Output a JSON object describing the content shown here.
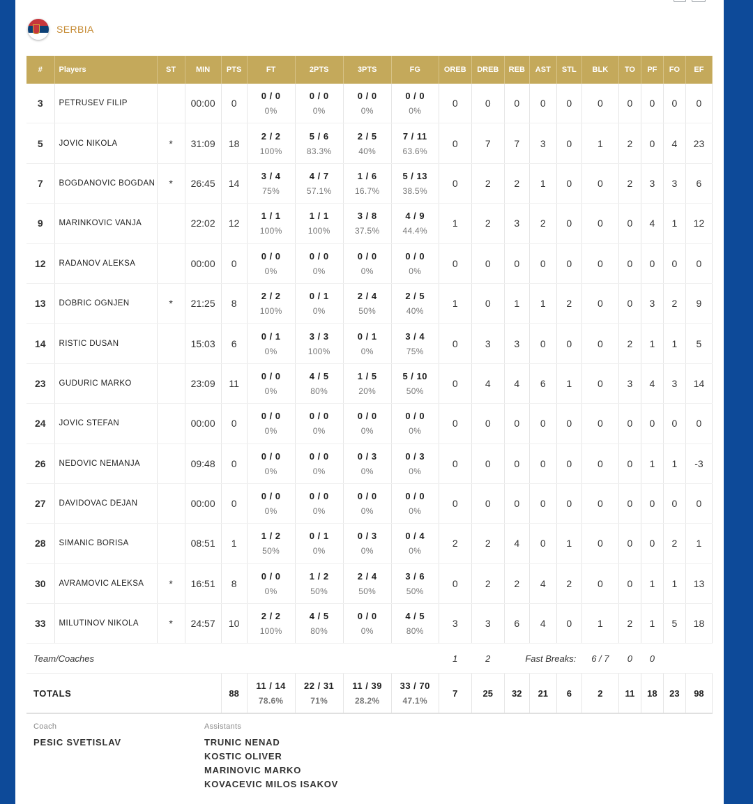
{
  "team": {
    "name": "SERBIA"
  },
  "columns": [
    "#",
    "Players",
    "ST",
    "MIN",
    "PTS",
    "FT",
    "2PTS",
    "3PTS",
    "FG",
    "OREB",
    "DREB",
    "REB",
    "AST",
    "STL",
    "BLK",
    "TO",
    "PF",
    "FO",
    "EF"
  ],
  "players": [
    {
      "num": "3",
      "name": "PETRUSEV FILIP",
      "st": "",
      "min": "00:00",
      "pts": "0",
      "ft": "0 / 0",
      "ft_pct": "0%",
      "p2": "0 / 0",
      "p2_pct": "0%",
      "p3": "0 / 0",
      "p3_pct": "0%",
      "fg": "0 / 0",
      "fg_pct": "0%",
      "oreb": "0",
      "dreb": "0",
      "reb": "0",
      "ast": "0",
      "stl": "0",
      "blk": "0",
      "to": "0",
      "pf": "0",
      "fo": "0",
      "ef": "0"
    },
    {
      "num": "5",
      "name": "JOVIC NIKOLA",
      "st": "*",
      "min": "31:09",
      "pts": "18",
      "ft": "2 / 2",
      "ft_pct": "100%",
      "p2": "5 / 6",
      "p2_pct": "83.3%",
      "p3": "2 / 5",
      "p3_pct": "40%",
      "fg": "7 / 11",
      "fg_pct": "63.6%",
      "oreb": "0",
      "dreb": "7",
      "reb": "7",
      "ast": "3",
      "stl": "0",
      "blk": "1",
      "to": "2",
      "pf": "0",
      "fo": "4",
      "ef": "23"
    },
    {
      "num": "7",
      "name": "BOGDANOVIC BOGDAN",
      "st": "*",
      "min": "26:45",
      "pts": "14",
      "ft": "3 / 4",
      "ft_pct": "75%",
      "p2": "4 / 7",
      "p2_pct": "57.1%",
      "p3": "1 / 6",
      "p3_pct": "16.7%",
      "fg": "5 / 13",
      "fg_pct": "38.5%",
      "oreb": "0",
      "dreb": "2",
      "reb": "2",
      "ast": "1",
      "stl": "0",
      "blk": "0",
      "to": "2",
      "pf": "3",
      "fo": "3",
      "ef": "6"
    },
    {
      "num": "9",
      "name": "MARINKOVIC VANJA",
      "st": "",
      "min": "22:02",
      "pts": "12",
      "ft": "1 / 1",
      "ft_pct": "100%",
      "p2": "1 / 1",
      "p2_pct": "100%",
      "p3": "3 / 8",
      "p3_pct": "37.5%",
      "fg": "4 / 9",
      "fg_pct": "44.4%",
      "oreb": "1",
      "dreb": "2",
      "reb": "3",
      "ast": "2",
      "stl": "0",
      "blk": "0",
      "to": "0",
      "pf": "4",
      "fo": "1",
      "ef": "12"
    },
    {
      "num": "12",
      "name": "RADANOV ALEKSA",
      "st": "",
      "min": "00:00",
      "pts": "0",
      "ft": "0 / 0",
      "ft_pct": "0%",
      "p2": "0 / 0",
      "p2_pct": "0%",
      "p3": "0 / 0",
      "p3_pct": "0%",
      "fg": "0 / 0",
      "fg_pct": "0%",
      "oreb": "0",
      "dreb": "0",
      "reb": "0",
      "ast": "0",
      "stl": "0",
      "blk": "0",
      "to": "0",
      "pf": "0",
      "fo": "0",
      "ef": "0"
    },
    {
      "num": "13",
      "name": "DOBRIC OGNJEN",
      "st": "*",
      "min": "21:25",
      "pts": "8",
      "ft": "2 / 2",
      "ft_pct": "100%",
      "p2": "0 / 1",
      "p2_pct": "0%",
      "p3": "2 / 4",
      "p3_pct": "50%",
      "fg": "2 / 5",
      "fg_pct": "40%",
      "oreb": "1",
      "dreb": "0",
      "reb": "1",
      "ast": "1",
      "stl": "2",
      "blk": "0",
      "to": "0",
      "pf": "3",
      "fo": "2",
      "ef": "9"
    },
    {
      "num": "14",
      "name": "RISTIC DUSAN",
      "st": "",
      "min": "15:03",
      "pts": "6",
      "ft": "0 / 1",
      "ft_pct": "0%",
      "p2": "3 / 3",
      "p2_pct": "100%",
      "p3": "0 / 1",
      "p3_pct": "0%",
      "fg": "3 / 4",
      "fg_pct": "75%",
      "oreb": "0",
      "dreb": "3",
      "reb": "3",
      "ast": "0",
      "stl": "0",
      "blk": "0",
      "to": "2",
      "pf": "1",
      "fo": "1",
      "ef": "5"
    },
    {
      "num": "23",
      "name": "GUDURIC MARKO",
      "st": "",
      "min": "23:09",
      "pts": "11",
      "ft": "0 / 0",
      "ft_pct": "0%",
      "p2": "4 / 5",
      "p2_pct": "80%",
      "p3": "1 / 5",
      "p3_pct": "20%",
      "fg": "5 / 10",
      "fg_pct": "50%",
      "oreb": "0",
      "dreb": "4",
      "reb": "4",
      "ast": "6",
      "stl": "1",
      "blk": "0",
      "to": "3",
      "pf": "4",
      "fo": "3",
      "ef": "14"
    },
    {
      "num": "24",
      "name": "JOVIC STEFAN",
      "st": "",
      "min": "00:00",
      "pts": "0",
      "ft": "0 / 0",
      "ft_pct": "0%",
      "p2": "0 / 0",
      "p2_pct": "0%",
      "p3": "0 / 0",
      "p3_pct": "0%",
      "fg": "0 / 0",
      "fg_pct": "0%",
      "oreb": "0",
      "dreb": "0",
      "reb": "0",
      "ast": "0",
      "stl": "0",
      "blk": "0",
      "to": "0",
      "pf": "0",
      "fo": "0",
      "ef": "0"
    },
    {
      "num": "26",
      "name": "NEDOVIC NEMANJA",
      "st": "",
      "min": "09:48",
      "pts": "0",
      "ft": "0 / 0",
      "ft_pct": "0%",
      "p2": "0 / 0",
      "p2_pct": "0%",
      "p3": "0 / 3",
      "p3_pct": "0%",
      "fg": "0 / 3",
      "fg_pct": "0%",
      "oreb": "0",
      "dreb": "0",
      "reb": "0",
      "ast": "0",
      "stl": "0",
      "blk": "0",
      "to": "0",
      "pf": "1",
      "fo": "1",
      "ef": "-3"
    },
    {
      "num": "27",
      "name": "DAVIDOVAC DEJAN",
      "st": "",
      "min": "00:00",
      "pts": "0",
      "ft": "0 / 0",
      "ft_pct": "0%",
      "p2": "0 / 0",
      "p2_pct": "0%",
      "p3": "0 / 0",
      "p3_pct": "0%",
      "fg": "0 / 0",
      "fg_pct": "0%",
      "oreb": "0",
      "dreb": "0",
      "reb": "0",
      "ast": "0",
      "stl": "0",
      "blk": "0",
      "to": "0",
      "pf": "0",
      "fo": "0",
      "ef": "0"
    },
    {
      "num": "28",
      "name": "SIMANIC BORISA",
      "st": "",
      "min": "08:51",
      "pts": "1",
      "ft": "1 / 2",
      "ft_pct": "50%",
      "p2": "0 / 1",
      "p2_pct": "0%",
      "p3": "0 / 3",
      "p3_pct": "0%",
      "fg": "0 / 4",
      "fg_pct": "0%",
      "oreb": "2",
      "dreb": "2",
      "reb": "4",
      "ast": "0",
      "stl": "1",
      "blk": "0",
      "to": "0",
      "pf": "0",
      "fo": "2",
      "ef": "1"
    },
    {
      "num": "30",
      "name": "AVRAMOVIC ALEKSA",
      "st": "*",
      "min": "16:51",
      "pts": "8",
      "ft": "0 / 0",
      "ft_pct": "0%",
      "p2": "1 / 2",
      "p2_pct": "50%",
      "p3": "2 / 4",
      "p3_pct": "50%",
      "fg": "3 / 6",
      "fg_pct": "50%",
      "oreb": "0",
      "dreb": "2",
      "reb": "2",
      "ast": "4",
      "stl": "2",
      "blk": "0",
      "to": "0",
      "pf": "1",
      "fo": "1",
      "ef": "13"
    },
    {
      "num": "33",
      "name": "MILUTINOV NIKOLA",
      "st": "*",
      "min": "24:57",
      "pts": "10",
      "ft": "2 / 2",
      "ft_pct": "100%",
      "p2": "4 / 5",
      "p2_pct": "80%",
      "p3": "0 / 0",
      "p3_pct": "0%",
      "fg": "4 / 5",
      "fg_pct": "80%",
      "oreb": "3",
      "dreb": "3",
      "reb": "6",
      "ast": "4",
      "stl": "0",
      "blk": "1",
      "to": "2",
      "pf": "1",
      "fo": "5",
      "ef": "18"
    }
  ],
  "team_row": {
    "label": "Team/Coaches",
    "oreb": "1",
    "dreb": "2",
    "fast_breaks_label": "Fast Breaks:",
    "fast_breaks": "6 / 7",
    "to": "0",
    "pf": "0"
  },
  "totals": {
    "label": "TOTALS",
    "pts": "88",
    "ft": "11 / 14",
    "ft_pct": "78.6%",
    "p2": "22 / 31",
    "p2_pct": "71%",
    "p3": "11 / 39",
    "p3_pct": "28.2%",
    "fg": "33 / 70",
    "fg_pct": "47.1%",
    "oreb": "7",
    "dreb": "25",
    "reb": "32",
    "ast": "21",
    "stl": "6",
    "blk": "2",
    "to": "11",
    "pf": "18",
    "fo": "23",
    "ef": "98"
  },
  "coach": {
    "label": "Coach",
    "name": "PESIC SVETISLAV"
  },
  "assistants": {
    "label": "Assistants",
    "names": [
      "TRUNIC NENAD",
      "KOSTIC OLIVER",
      "MARINOVIC MARKO",
      "KOVACEVIC MILOS ISAKOV"
    ]
  },
  "colors": {
    "header_gold": "#c4a95b",
    "team_orange": "#c58a32",
    "frame_blue": "#0d4a99"
  },
  "icons": {
    "flag": "serbia-flag-icon"
  }
}
